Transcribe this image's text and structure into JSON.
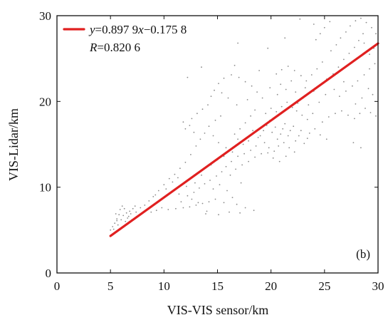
{
  "chart_data": {
    "type": "scatter",
    "xlabel": "VIS-VIS sensor/km",
    "ylabel": "VIS-Lidar/km",
    "xlim": [
      0,
      30
    ],
    "ylim": [
      0,
      30
    ],
    "x_ticks": [
      "0",
      "5",
      "10",
      "15",
      "20",
      "25",
      "30"
    ],
    "y_ticks": [
      "0",
      "10",
      "20",
      "30"
    ],
    "grid": false,
    "legend_position": "top-left",
    "panel_label": "(b)",
    "colors": {
      "points": "#8a8a8a",
      "fit_line": "#e02020",
      "frame": "#111111"
    },
    "fit": {
      "slope": 0.8979,
      "intercept": -0.1758,
      "x_range": [
        5,
        30
      ],
      "equation": {
        "y": "y",
        "eq": "=0.897 9",
        "x": "x",
        "rest": "−0.175 8"
      },
      "r": {
        "R": "R",
        "eq": "=0.820 6"
      }
    },
    "series": [
      {
        "points": [
          [
            5.0,
            5.0
          ],
          [
            5.2,
            5.4
          ],
          [
            5.4,
            5.8
          ],
          [
            5.6,
            6.3
          ],
          [
            5.8,
            6.8
          ],
          [
            5.9,
            7.4
          ],
          [
            6.1,
            7.8
          ],
          [
            6.3,
            7.5
          ],
          [
            6.5,
            7.0
          ],
          [
            6.7,
            6.6
          ],
          [
            6.9,
            6.9
          ],
          [
            7.1,
            7.5
          ],
          [
            6.0,
            6.2
          ],
          [
            6.4,
            6.0
          ],
          [
            6.8,
            7.2
          ],
          [
            7.3,
            7.8
          ],
          [
            7.8,
            7.6
          ],
          [
            8.2,
            7.9
          ],
          [
            5.3,
            5.1
          ],
          [
            5.7,
            5.6
          ],
          [
            6.6,
            6.4
          ],
          [
            7.0,
            6.2
          ],
          [
            5.5,
            6.9
          ],
          [
            8.6,
            8.4
          ],
          [
            9.0,
            8.9
          ],
          [
            9.5,
            9.6
          ],
          [
            10.0,
            10.3
          ],
          [
            10.5,
            11.0
          ],
          [
            11.0,
            11.5
          ],
          [
            11.5,
            12.2
          ],
          [
            12.0,
            12.9
          ],
          [
            12.5,
            13.8
          ],
          [
            9.8,
            7.6
          ],
          [
            10.4,
            7.4
          ],
          [
            11.1,
            7.5
          ],
          [
            11.8,
            7.6
          ],
          [
            12.4,
            7.7
          ],
          [
            13.0,
            7.9
          ],
          [
            13.6,
            8.1
          ],
          [
            14.2,
            8.3
          ],
          [
            14.8,
            8.6
          ],
          [
            12.2,
            9.0
          ],
          [
            12.8,
            9.4
          ],
          [
            13.3,
            9.9
          ],
          [
            13.8,
            10.4
          ],
          [
            14.3,
            10.8
          ],
          [
            14.9,
            11.3
          ],
          [
            15.4,
            11.8
          ],
          [
            15.8,
            12.4
          ],
          [
            16.3,
            13.0
          ],
          [
            11.6,
            8.3
          ],
          [
            12.6,
            8.6
          ],
          [
            13.2,
            8.2
          ],
          [
            11.4,
            9.2
          ],
          [
            12.1,
            10.1
          ],
          [
            12.9,
            10.5
          ],
          [
            13.5,
            11.4
          ],
          [
            14.6,
            9.8
          ],
          [
            15.2,
            10.3
          ],
          [
            15.9,
            9.6
          ],
          [
            16.4,
            8.8
          ],
          [
            16.8,
            8.0
          ],
          [
            17.6,
            7.6
          ],
          [
            18.4,
            7.3
          ],
          [
            17.2,
            10.5
          ],
          [
            15.6,
            8.2
          ],
          [
            14.0,
            7.2
          ],
          [
            16.1,
            7.1
          ],
          [
            13.0,
            14.8
          ],
          [
            13.4,
            15.6
          ],
          [
            13.8,
            16.3
          ],
          [
            14.2,
            17.1
          ],
          [
            14.8,
            17.8
          ],
          [
            15.3,
            18.3
          ],
          [
            12.8,
            16.4
          ],
          [
            12.4,
            17.2
          ],
          [
            12.6,
            18.0
          ],
          [
            13.1,
            18.6
          ],
          [
            13.6,
            19.1
          ],
          [
            14.1,
            19.6
          ],
          [
            11.8,
            17.6
          ],
          [
            12.0,
            16.8
          ],
          [
            14.6,
            16.0
          ],
          [
            15.1,
            15.2
          ],
          [
            15.8,
            14.6
          ],
          [
            16.4,
            14.1
          ],
          [
            16.9,
            13.6
          ],
          [
            17.5,
            13.9
          ],
          [
            18.1,
            14.3
          ],
          [
            18.6,
            14.8
          ],
          [
            16.6,
            16.2
          ],
          [
            17.1,
            16.8
          ],
          [
            17.6,
            17.5
          ],
          [
            18.1,
            18.3
          ],
          [
            18.5,
            19.0
          ],
          [
            19.0,
            16.0
          ],
          [
            19.3,
            16.6
          ],
          [
            19.6,
            17.2
          ],
          [
            19.9,
            17.8
          ],
          [
            20.1,
            16.4
          ],
          [
            20.4,
            17.0
          ],
          [
            20.6,
            15.6
          ],
          [
            20.9,
            16.2
          ],
          [
            21.1,
            16.8
          ],
          [
            21.3,
            17.4
          ],
          [
            21.6,
            16.0
          ],
          [
            21.8,
            16.6
          ],
          [
            22.1,
            17.1
          ],
          [
            22.3,
            15.4
          ],
          [
            22.6,
            16.0
          ],
          [
            22.8,
            16.6
          ],
          [
            23.1,
            15.1
          ],
          [
            23.4,
            15.7
          ],
          [
            23.6,
            16.3
          ],
          [
            19.4,
            15.2
          ],
          [
            19.8,
            14.6
          ],
          [
            20.3,
            14.2
          ],
          [
            20.7,
            14.8
          ],
          [
            21.2,
            15.2
          ],
          [
            21.7,
            14.6
          ],
          [
            22.2,
            14.1
          ],
          [
            18.8,
            15.8
          ],
          [
            18.3,
            16.6
          ],
          [
            17.9,
            15.4
          ],
          [
            17.4,
            15.0
          ],
          [
            16.9,
            15.6
          ],
          [
            19.5,
            18.6
          ],
          [
            20.0,
            19.2
          ],
          [
            20.5,
            18.8
          ],
          [
            21.0,
            19.4
          ],
          [
            21.5,
            19.9
          ],
          [
            22.0,
            19.3
          ],
          [
            22.5,
            19.8
          ],
          [
            23.0,
            20.4
          ],
          [
            23.5,
            19.6
          ],
          [
            19.2,
            20.4
          ],
          [
            18.7,
            21.1
          ],
          [
            18.2,
            21.8
          ],
          [
            17.6,
            22.3
          ],
          [
            17.0,
            22.8
          ],
          [
            16.3,
            23.1
          ],
          [
            15.6,
            22.7
          ],
          [
            15.1,
            22.1
          ],
          [
            14.7,
            21.3
          ],
          [
            14.4,
            20.6
          ],
          [
            17.8,
            20.2
          ],
          [
            16.8,
            19.6
          ],
          [
            16.0,
            20.4
          ],
          [
            15.4,
            21.0
          ],
          [
            20.6,
            20.8
          ],
          [
            21.4,
            21.4
          ],
          [
            22.3,
            21.1
          ],
          [
            23.2,
            21.6
          ],
          [
            24.0,
            21.2
          ],
          [
            24.6,
            21.9
          ],
          [
            25.2,
            22.6
          ],
          [
            25.8,
            23.2
          ],
          [
            26.3,
            24.0
          ],
          [
            26.8,
            24.9
          ],
          [
            27.3,
            25.6
          ],
          [
            27.8,
            26.3
          ],
          [
            28.2,
            27.1
          ],
          [
            28.6,
            27.9
          ],
          [
            24.8,
            17.6
          ],
          [
            25.4,
            18.2
          ],
          [
            26.0,
            18.6
          ],
          [
            26.6,
            18.9
          ],
          [
            27.2,
            18.4
          ],
          [
            27.8,
            18.0
          ],
          [
            28.3,
            18.6
          ],
          [
            28.8,
            19.2
          ],
          [
            29.3,
            18.7
          ],
          [
            29.8,
            18.3
          ],
          [
            26.4,
            20.6
          ],
          [
            27.0,
            21.2
          ],
          [
            27.6,
            21.8
          ],
          [
            28.1,
            22.4
          ],
          [
            28.7,
            23.1
          ],
          [
            29.2,
            23.8
          ],
          [
            29.7,
            24.4
          ],
          [
            25.6,
            25.9
          ],
          [
            26.1,
            26.6
          ],
          [
            26.5,
            27.4
          ],
          [
            27.0,
            28.1
          ],
          [
            27.4,
            28.8
          ],
          [
            27.9,
            29.4
          ],
          [
            28.4,
            29.7
          ],
          [
            28.9,
            29.2
          ],
          [
            29.4,
            28.6
          ],
          [
            29.8,
            27.9
          ],
          [
            24.2,
            27.2
          ],
          [
            24.6,
            27.9
          ],
          [
            25.0,
            28.6
          ],
          [
            25.5,
            29.3
          ],
          [
            24.8,
            24.6
          ],
          [
            24.3,
            23.8
          ],
          [
            23.8,
            23.1
          ],
          [
            23.3,
            22.4
          ],
          [
            22.8,
            23.0
          ],
          [
            22.2,
            23.6
          ],
          [
            21.6,
            24.1
          ],
          [
            21.0,
            23.7
          ],
          [
            20.5,
            23.2
          ],
          [
            29.5,
            20.8
          ],
          [
            29.1,
            21.5
          ],
          [
            28.5,
            20.4
          ],
          [
            27.9,
            19.7
          ],
          [
            29.6,
            26.2
          ],
          [
            29.2,
            25.5
          ],
          [
            28.7,
            26.8
          ],
          [
            24.0,
            29.0
          ],
          [
            26.8,
            22.3
          ],
          [
            25.9,
            21.4
          ],
          [
            25.1,
            20.8
          ],
          [
            24.5,
            19.9
          ],
          [
            23.9,
            18.6
          ],
          [
            23.4,
            17.9
          ],
          [
            22.9,
            18.4
          ],
          [
            22.4,
            18.9
          ],
          [
            24.1,
            16.8
          ],
          [
            24.6,
            16.1
          ],
          [
            25.2,
            15.6
          ],
          [
            21.9,
            22.4
          ],
          [
            20.9,
            22.0
          ],
          [
            19.9,
            21.6
          ],
          [
            27.7,
            15.2
          ],
          [
            28.4,
            14.6
          ],
          [
            13.9,
            6.9
          ],
          [
            15.1,
            6.8
          ],
          [
            17.1,
            7.0
          ],
          [
            8.8,
            7.1
          ],
          [
            9.3,
            7.3
          ],
          [
            18.9,
            23.6
          ],
          [
            16.6,
            24.2
          ],
          [
            12.2,
            22.8
          ],
          [
            13.5,
            24.0
          ],
          [
            19.7,
            26.2
          ],
          [
            21.3,
            27.4
          ],
          [
            16.9,
            26.8
          ],
          [
            22.7,
            29.6
          ],
          [
            5.6,
            6.1
          ],
          [
            6.2,
            6.7
          ],
          [
            7.4,
            7.1
          ],
          [
            9.2,
            9.1
          ],
          [
            10.2,
            9.8
          ],
          [
            10.8,
            10.6
          ],
          [
            11.3,
            11.1
          ],
          [
            14.4,
            12.6
          ],
          [
            15.0,
            13.2
          ],
          [
            15.6,
            13.6
          ],
          [
            16.2,
            11.4
          ],
          [
            16.7,
            12.1
          ],
          [
            17.3,
            12.6
          ],
          [
            17.9,
            13.0
          ],
          [
            18.5,
            13.5
          ],
          [
            19.1,
            13.9
          ],
          [
            19.7,
            14.0
          ],
          [
            20.2,
            13.4
          ],
          [
            20.8,
            13.0
          ],
          [
            21.4,
            13.6
          ]
        ]
      }
    ]
  }
}
